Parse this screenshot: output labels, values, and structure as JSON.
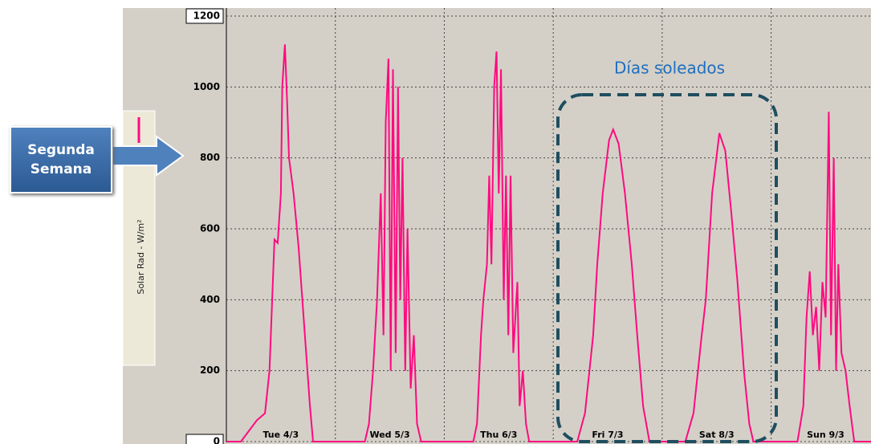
{
  "chart_data": {
    "type": "line",
    "series": [
      {
        "name": "Solar Rad - W/m²",
        "color": "#ff0a7f",
        "values": [
          0,
          0,
          60,
          80,
          200,
          570,
          560,
          700,
          1000,
          1120,
          950,
          800,
          700,
          550,
          300,
          100,
          0,
          0,
          50,
          200,
          400,
          700,
          300,
          900,
          1080,
          200,
          1050,
          250,
          1000,
          400,
          800,
          200,
          600,
          150,
          300,
          50,
          0,
          0,
          50,
          300,
          400,
          500,
          750,
          500,
          1000,
          1100,
          700,
          1050,
          400,
          750,
          300,
          750,
          250,
          450,
          100,
          200,
          50,
          0,
          0,
          80,
          300,
          500,
          700,
          850,
          880,
          840,
          700,
          500,
          300,
          100,
          0,
          0,
          80,
          300,
          400,
          700,
          870,
          820,
          650,
          450,
          200,
          50,
          0,
          0,
          100,
          350,
          480,
          300,
          380,
          200,
          450,
          350,
          930,
          300,
          800,
          200,
          500,
          250,
          200,
          100,
          0,
          0
        ]
      }
    ],
    "x": [
      0,
      3.2,
      6.7,
      8.5,
      9.5,
      10.6,
      11.3,
      12,
      12.3,
      12.9,
      13.4,
      13.8,
      14.8,
      15.9,
      17.3,
      18.4,
      19.1,
      30.5,
      31.4,
      32.3,
      33.2,
      34,
      34.6,
      35.1,
      35.7,
      36.2,
      36.7,
      37.3,
      37.8,
      38.3,
      38.8,
      39.4,
      39.9,
      40.6,
      41.3,
      42,
      42.9,
      54.4,
      55.2,
      56.1,
      56.6,
      57.4,
      57.9,
      58.4,
      59,
      59.5,
      60,
      60.5,
      61.1,
      61.6,
      62.1,
      62.6,
      63.2,
      64.1,
      64.6,
      65.3,
      66,
      66.7,
      77.3,
      79,
      80.8,
      81.7,
      82.9,
      84.3,
      85.2,
      86.4,
      87.8,
      89.3,
      90.5,
      91.8,
      93.2,
      101.1,
      102.9,
      104.7,
      105.6,
      107,
      108.6,
      109.9,
      111.2,
      112.6,
      114,
      115.2,
      116.1,
      125.8,
      127.1,
      127.8,
      128.5,
      129.2,
      129.9,
      130.6,
      131.3,
      132,
      132.7,
      133.2,
      133.8,
      134.3,
      134.8,
      135.5,
      136.4,
      137.3,
      138.3,
      142
    ],
    "xlim": [
      0,
      142
    ],
    "xticks": [
      {
        "value": 12,
        "label": "Tue 4/3"
      },
      {
        "value": 36,
        "label": "Wed 5/3"
      },
      {
        "value": 60,
        "label": "Thu 6/3"
      },
      {
        "value": 84,
        "label": "Fri 7/3"
      },
      {
        "value": 108,
        "label": "Sat 8/3"
      },
      {
        "value": 132,
        "label": "Sun 9/3"
      }
    ],
    "ylim": [
      0,
      1200
    ],
    "yticks": [
      0,
      200,
      400,
      600,
      800,
      1000,
      1200
    ],
    "grid": true,
    "annotations": [
      {
        "text": "Días soleados"
      },
      {
        "text": "Segunda Semana"
      }
    ]
  }
}
